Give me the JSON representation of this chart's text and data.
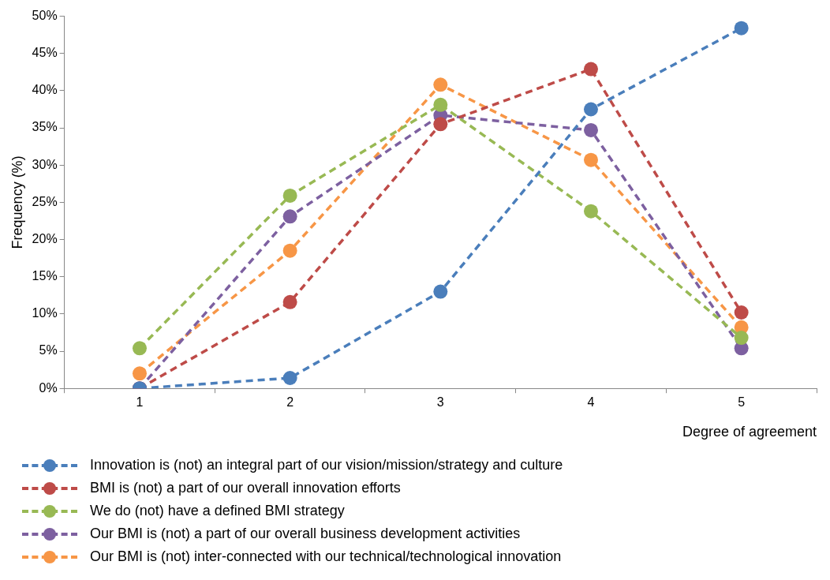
{
  "chart_data": {
    "type": "line",
    "xlabel": "Degree of agreement",
    "ylabel": "Frequency (%)",
    "categories": [
      "1",
      "2",
      "3",
      "4",
      "5"
    ],
    "ylim": [
      0,
      50
    ],
    "yticks": [
      {
        "value": 0,
        "label": "0%"
      },
      {
        "value": 5,
        "label": "5%"
      },
      {
        "value": 10,
        "label": "10%"
      },
      {
        "value": 15,
        "label": "15%"
      },
      {
        "value": 20,
        "label": "20%"
      },
      {
        "value": 25,
        "label": "25%"
      },
      {
        "value": 30,
        "label": "30%"
      },
      {
        "value": 35,
        "label": "35%"
      },
      {
        "value": 40,
        "label": "40%"
      },
      {
        "value": 45,
        "label": "45%"
      },
      {
        "value": 50,
        "label": "50%"
      }
    ],
    "grid": false,
    "legend": "bottom",
    "marker": "circle",
    "line_style": "dashed",
    "series": [
      {
        "name": "Innovation is (not) an integral part of our vision/mission/strategy and culture",
        "color": "#4a7ebb",
        "values": [
          0,
          1.4,
          13.0,
          37.5,
          48.4
        ]
      },
      {
        "name": "BMI is (not) a part of our overall innovation efforts",
        "color": "#be4b48",
        "values": [
          0,
          11.6,
          35.5,
          42.9,
          10.2
        ]
      },
      {
        "name": "We do (not) have a defined BMI strategy",
        "color": "#98b954",
        "values": [
          5.4,
          25.9,
          38.1,
          23.8,
          6.8
        ]
      },
      {
        "name": "Our BMI is (not) a part of our overall business development activities",
        "color": "#7d60a0",
        "values": [
          0,
          23.1,
          36.7,
          34.7,
          5.4
        ]
      },
      {
        "name": "Our BMI is (not) inter-connected with our technical/technological innovation",
        "color": "#f79646",
        "values": [
          2.0,
          18.5,
          40.8,
          30.7,
          8.2
        ]
      }
    ]
  }
}
